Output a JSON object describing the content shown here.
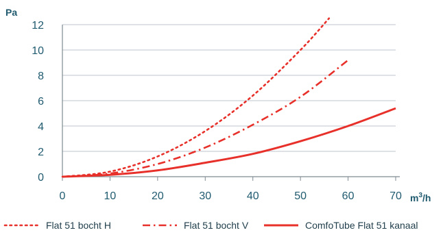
{
  "chart_data": {
    "type": "line",
    "ylabel": "Pa",
    "xlabel": "m³/h",
    "xlim": [
      0,
      70
    ],
    "ylim": [
      0,
      12
    ],
    "x_ticks": [
      0,
      10,
      20,
      30,
      40,
      50,
      60,
      70
    ],
    "y_ticks": [
      0,
      2,
      4,
      6,
      8,
      10,
      12
    ],
    "grid": "horizontal",
    "legend_position": "bottom",
    "line_color": "#e8302a",
    "series": [
      {
        "name": "Flat 51 bocht H",
        "style": "dotted",
        "x": [
          0,
          10,
          20,
          30,
          40,
          50,
          56
        ],
        "y": [
          0,
          0.4,
          1.6,
          3.6,
          6.4,
          10.0,
          12.5
        ]
      },
      {
        "name": "Flat 51 bocht V",
        "style": "dash-dot",
        "x": [
          0,
          10,
          20,
          30,
          40,
          50,
          60
        ],
        "y": [
          0,
          0.25,
          1.0,
          2.3,
          4.1,
          6.3,
          9.2
        ]
      },
      {
        "name": "ComfoTube Flat 51 kanaal",
        "style": "solid",
        "x": [
          0,
          10,
          20,
          30,
          40,
          50,
          60,
          70
        ],
        "y": [
          0,
          0.15,
          0.5,
          1.1,
          1.8,
          2.8,
          4.0,
          5.4
        ]
      }
    ]
  }
}
